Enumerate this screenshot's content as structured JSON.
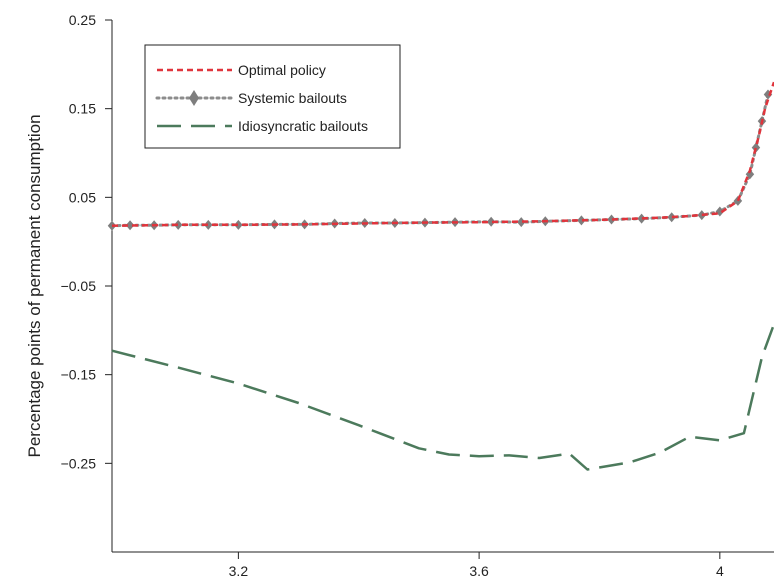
{
  "chart_data": {
    "type": "line",
    "xlabel": "",
    "ylabel": "Percentage points of permanent consumption",
    "xlim": [
      2.99,
      4.09
    ],
    "ylim": [
      -0.35,
      0.25
    ],
    "x_ticks": [
      3.2,
      3.6,
      4
    ],
    "x_tick_labels": [
      "3.2",
      "3.6",
      "4"
    ],
    "y_ticks": [
      0.25,
      0.15,
      0.05,
      -0.05,
      -0.15,
      -0.25
    ],
    "y_tick_labels": [
      "0.25",
      "0.15",
      "0.05",
      "−0.05",
      "−0.15",
      "−0.25"
    ],
    "grid": false,
    "legend": {
      "placement": "top-left",
      "entries": [
        "Optimal policy",
        "Systemic bailouts",
        "Idiosyncratic bailouts"
      ]
    },
    "series": [
      {
        "name": "Optimal policy",
        "color": "#e0343c",
        "style": "short-dash",
        "x": [
          2.99,
          3.05,
          3.1,
          3.2,
          3.3,
          3.4,
          3.5,
          3.6,
          3.7,
          3.8,
          3.9,
          3.95,
          4.0,
          4.03,
          4.05,
          4.065,
          4.075,
          4.09
        ],
        "y": [
          0.018,
          0.0185,
          0.019,
          0.019,
          0.0195,
          0.0205,
          0.0215,
          0.022,
          0.023,
          0.0245,
          0.027,
          0.029,
          0.032,
          0.046,
          0.08,
          0.12,
          0.15,
          0.18
        ]
      },
      {
        "name": "Systemic bailouts",
        "color": "#8c8c8c",
        "style": "dotted-diamond",
        "x": [
          2.99,
          3.02,
          3.06,
          3.1,
          3.15,
          3.2,
          3.26,
          3.31,
          3.36,
          3.41,
          3.46,
          3.51,
          3.56,
          3.62,
          3.67,
          3.71,
          3.77,
          3.82,
          3.87,
          3.92,
          3.97,
          4.0,
          4.03,
          4.05,
          4.06,
          4.07,
          4.08
        ],
        "y": [
          0.018,
          0.0185,
          0.0185,
          0.019,
          0.019,
          0.019,
          0.0195,
          0.0195,
          0.0205,
          0.021,
          0.021,
          0.0215,
          0.022,
          0.0225,
          0.022,
          0.023,
          0.024,
          0.025,
          0.026,
          0.0275,
          0.03,
          0.034,
          0.046,
          0.076,
          0.106,
          0.136,
          0.166
        ]
      },
      {
        "name": "Idiosyncratic bailouts",
        "color": "#4c7a5c",
        "style": "long-dash",
        "x": [
          2.99,
          3.1,
          3.2,
          3.3,
          3.4,
          3.5,
          3.55,
          3.6,
          3.65,
          3.7,
          3.75,
          3.78,
          3.85,
          3.9,
          3.95,
          4.0,
          4.04,
          4.07,
          4.09
        ],
        "y": [
          -0.123,
          -0.142,
          -0.16,
          -0.182,
          -0.207,
          -0.233,
          -0.24,
          -0.242,
          -0.241,
          -0.244,
          -0.239,
          -0.257,
          -0.249,
          -0.238,
          -0.22,
          -0.224,
          -0.216,
          -0.13,
          -0.093
        ]
      }
    ]
  }
}
